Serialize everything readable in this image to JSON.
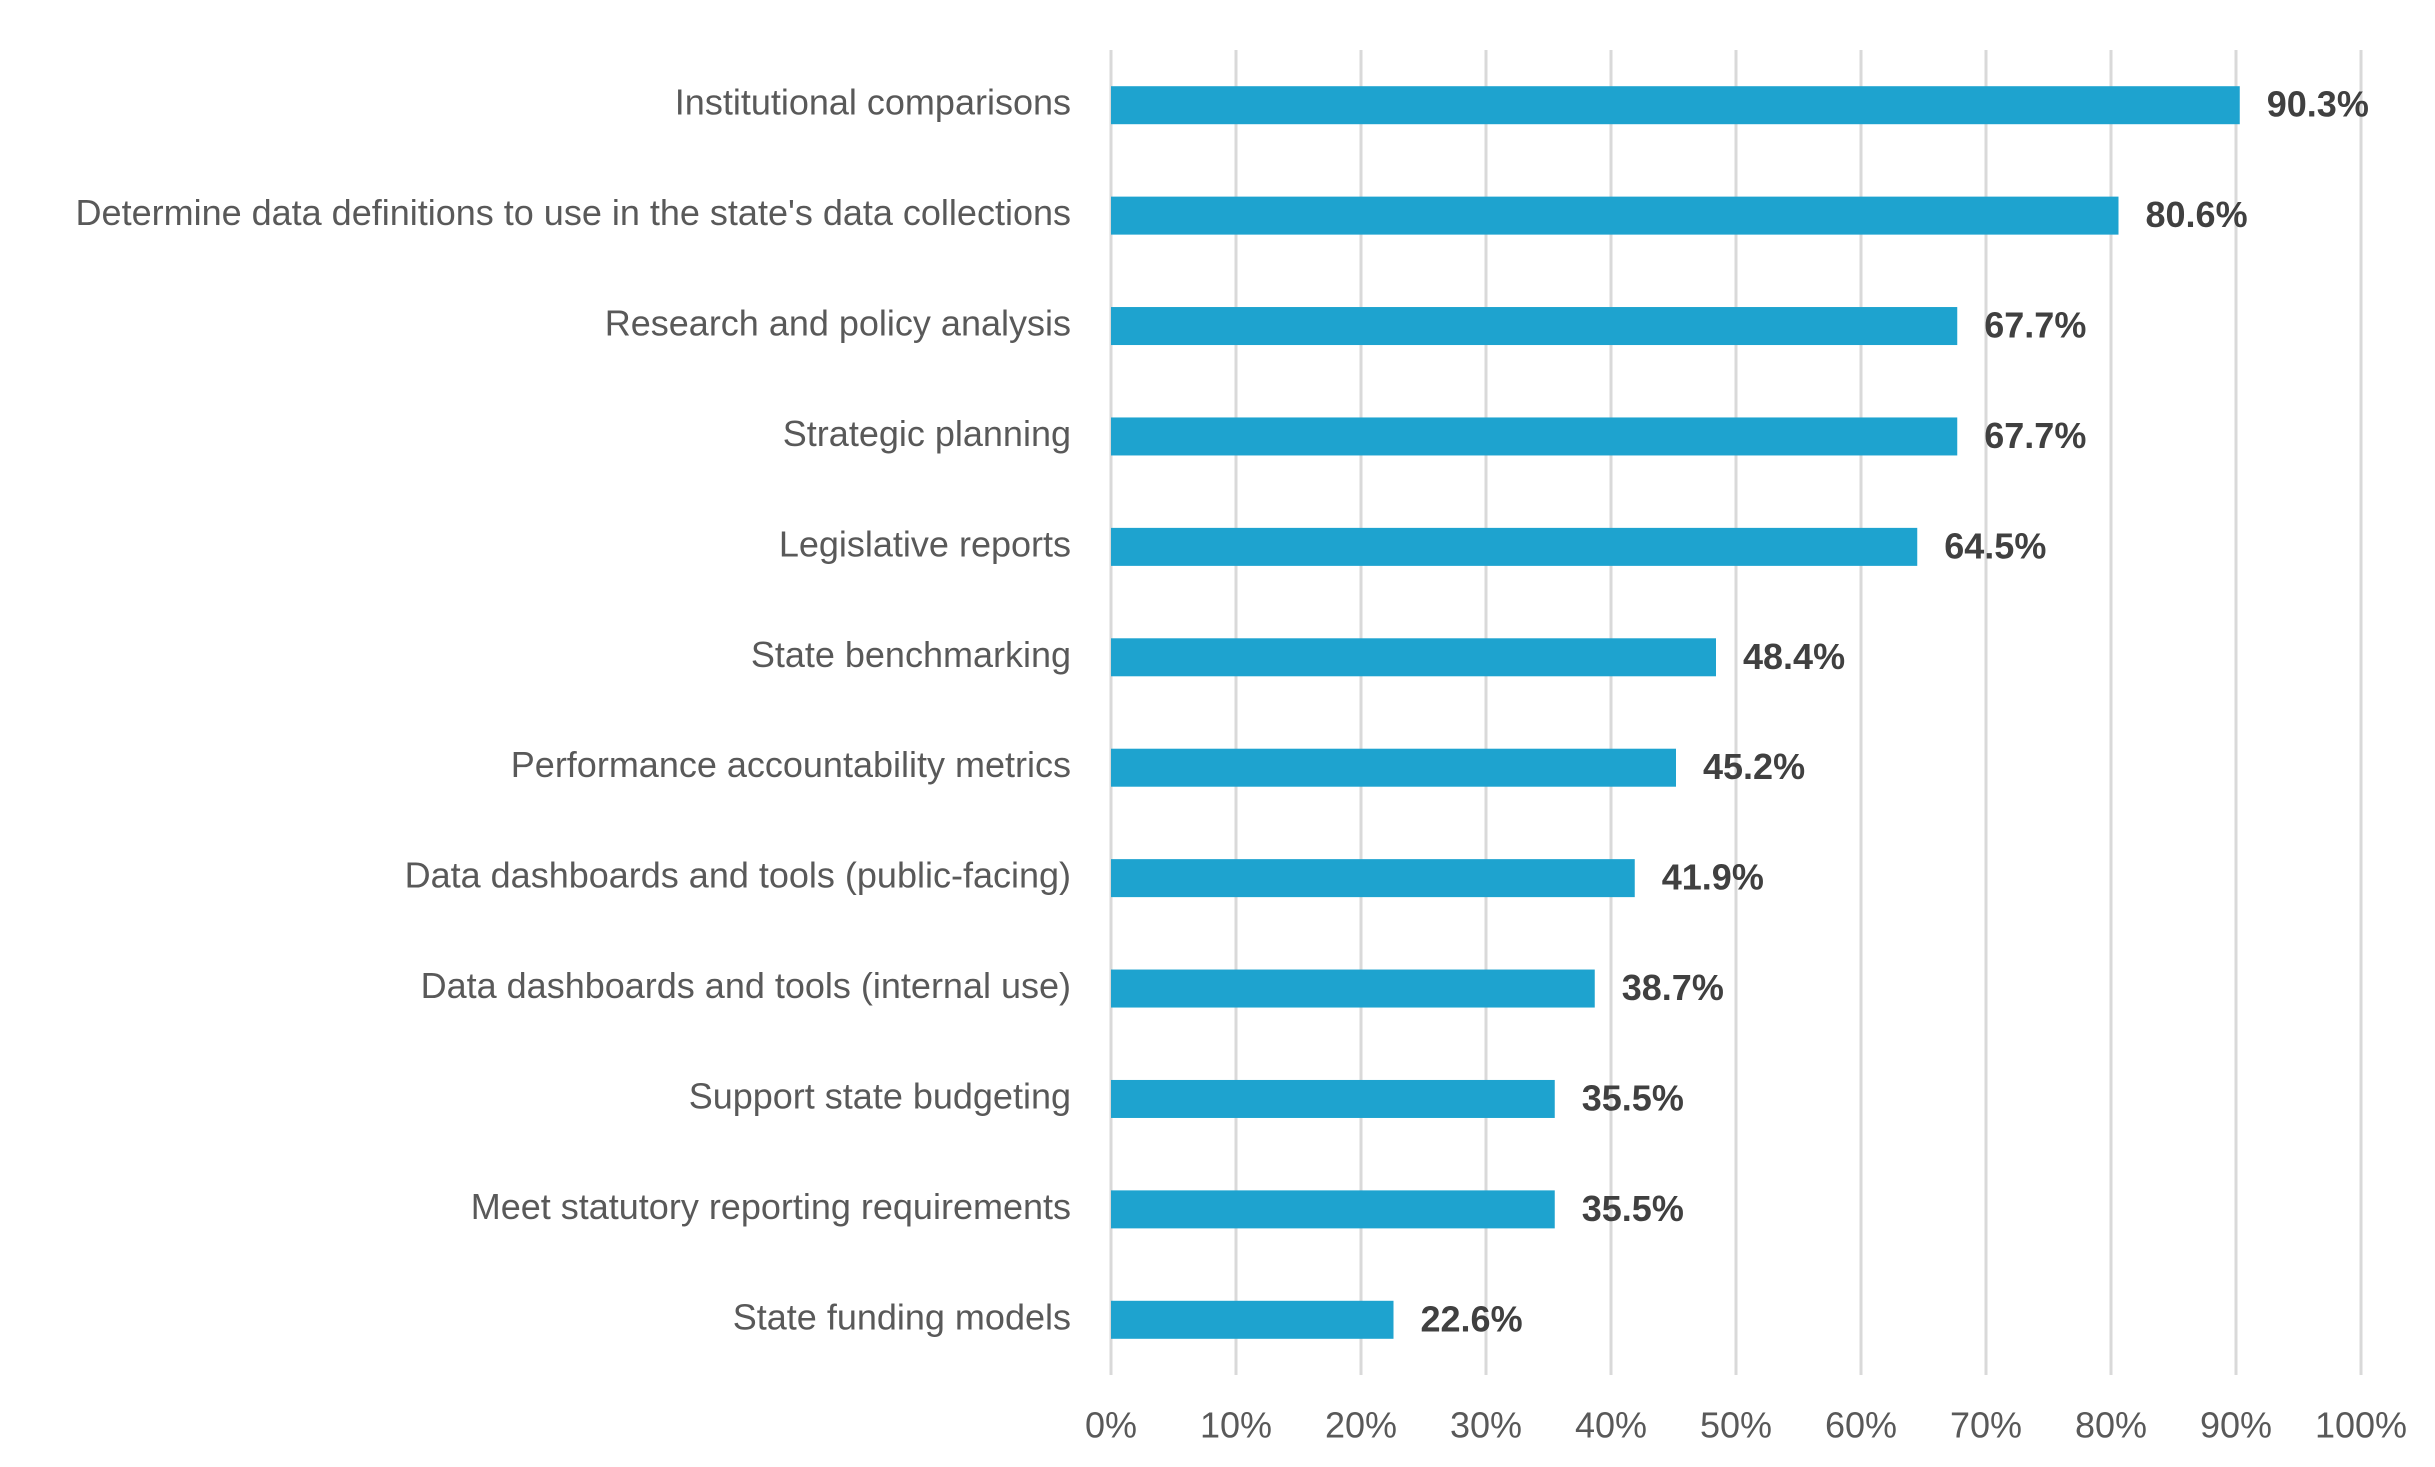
{
  "chart_data": {
    "type": "barh",
    "categories": [
      "Institutional comparisons",
      "Determine data definitions to use in the state's data collections",
      "Research and policy analysis",
      "Strategic planning",
      "Legislative reports",
      "State benchmarking",
      "Performance accountability metrics",
      "Data dashboards and tools (public-facing)",
      "Data dashboards and tools (internal use)",
      "Support state budgeting",
      "Meet statutory reporting requirements",
      "State funding models"
    ],
    "values": [
      90.3,
      80.6,
      67.7,
      67.7,
      64.5,
      48.4,
      45.2,
      41.9,
      38.7,
      35.5,
      35.5,
      22.6
    ],
    "value_labels": [
      "90.3%",
      "80.6%",
      "67.7%",
      "67.7%",
      "64.5%",
      "48.4%",
      "45.2%",
      "41.9%",
      "38.7%",
      "35.5%",
      "35.5%",
      "22.6%"
    ],
    "color": "#1ea3cf",
    "xlim": [
      0,
      100
    ],
    "xticks": [
      {
        "value": 0,
        "label": "0%"
      },
      {
        "value": 10,
        "label": "10%"
      },
      {
        "value": 20,
        "label": "20%"
      },
      {
        "value": 30,
        "label": "30%"
      },
      {
        "value": 40,
        "label": "40%"
      },
      {
        "value": 50,
        "label": "50%"
      },
      {
        "value": 60,
        "label": "60%"
      },
      {
        "value": 70,
        "label": "70%"
      },
      {
        "value": 80,
        "label": "80%"
      },
      {
        "value": 90,
        "label": "90%"
      },
      {
        "value": 100,
        "label": "100%"
      }
    ],
    "grid": true
  }
}
